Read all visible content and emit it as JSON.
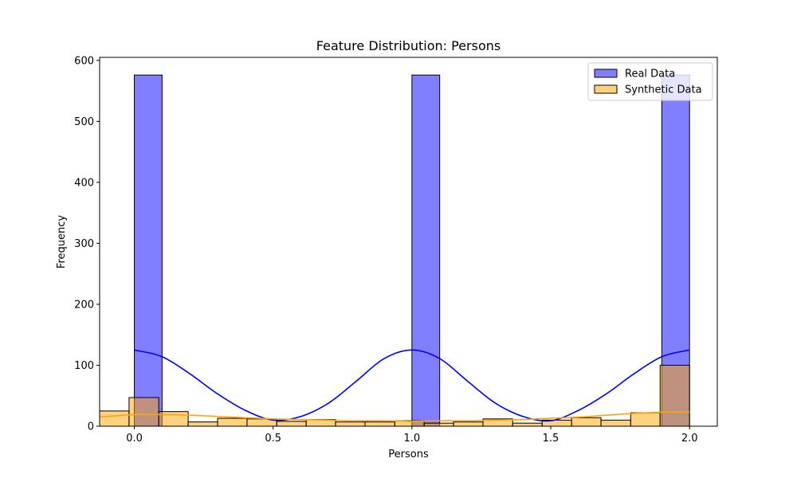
{
  "chart_data": {
    "type": "histogram",
    "title": "Feature Distribution: Persons",
    "xlabel": "Persons",
    "ylabel": "Frequency",
    "xlim": [
      -0.125,
      2.1
    ],
    "ylim": [
      0,
      605
    ],
    "xticks": [
      0.0,
      0.5,
      1.0,
      1.5,
      2.0
    ],
    "xtick_labels": [
      "0.0",
      "0.5",
      "1.0",
      "1.5",
      "2.0"
    ],
    "yticks": [
      0,
      100,
      200,
      300,
      400,
      500,
      600
    ],
    "ytick_labels": [
      "0",
      "100",
      "200",
      "300",
      "400",
      "500",
      "600"
    ],
    "grid": false,
    "legend_position": "top-right",
    "series": [
      {
        "name": "Real Data",
        "color": "#0000ff",
        "fill_opacity": 0.5,
        "bins": [
          {
            "x0": 0.0,
            "x1": 0.1,
            "count": 576
          },
          {
            "x0": 0.1,
            "x1": 0.2,
            "count": 0
          },
          {
            "x0": 0.2,
            "x1": 0.3,
            "count": 0
          },
          {
            "x0": 0.3,
            "x1": 0.4,
            "count": 0
          },
          {
            "x0": 0.4,
            "x1": 0.5,
            "count": 0
          },
          {
            "x0": 0.5,
            "x1": 0.6,
            "count": 0
          },
          {
            "x0": 0.6,
            "x1": 0.7,
            "count": 0
          },
          {
            "x0": 0.7,
            "x1": 0.8,
            "count": 0
          },
          {
            "x0": 0.8,
            "x1": 0.9,
            "count": 0
          },
          {
            "x0": 0.9,
            "x1": 1.0,
            "count": 0
          },
          {
            "x0": 1.0,
            "x1": 1.1,
            "count": 576
          },
          {
            "x0": 1.1,
            "x1": 1.2,
            "count": 0
          },
          {
            "x0": 1.2,
            "x1": 1.3,
            "count": 0
          },
          {
            "x0": 1.3,
            "x1": 1.4,
            "count": 0
          },
          {
            "x0": 1.4,
            "x1": 1.5,
            "count": 0
          },
          {
            "x0": 1.5,
            "x1": 1.6,
            "count": 0
          },
          {
            "x0": 1.6,
            "x1": 1.7,
            "count": 0
          },
          {
            "x0": 1.7,
            "x1": 1.8,
            "count": 0
          },
          {
            "x0": 1.8,
            "x1": 1.9,
            "count": 0
          },
          {
            "x0": 1.9,
            "x1": 2.0,
            "count": 576
          }
        ],
        "kde": {
          "x": [
            0.0,
            0.1,
            0.2,
            0.3,
            0.4,
            0.5,
            0.6,
            0.7,
            0.8,
            0.9,
            1.0,
            1.1,
            1.2,
            1.3,
            1.4,
            1.5,
            1.6,
            1.7,
            1.8,
            1.9,
            2.0
          ],
          "y": [
            125,
            114,
            86,
            53,
            26,
            10,
            16,
            38,
            74,
            111,
            125,
            111,
            74,
            38,
            16,
            9,
            26,
            53,
            86,
            114,
            125
          ]
        }
      },
      {
        "name": "Synthetic Data",
        "color": "#ffa500",
        "fill_opacity": 0.5,
        "bins": [
          {
            "x0": -0.125,
            "x1": -0.019,
            "count": 25
          },
          {
            "x0": -0.019,
            "x1": 0.088,
            "count": 47
          },
          {
            "x0": 0.088,
            "x1": 0.194,
            "count": 24
          },
          {
            "x0": 0.194,
            "x1": 0.3,
            "count": 7
          },
          {
            "x0": 0.3,
            "x1": 0.406,
            "count": 13
          },
          {
            "x0": 0.406,
            "x1": 0.513,
            "count": 12
          },
          {
            "x0": 0.513,
            "x1": 0.619,
            "count": 8
          },
          {
            "x0": 0.619,
            "x1": 0.725,
            "count": 11
          },
          {
            "x0": 0.725,
            "x1": 0.831,
            "count": 7
          },
          {
            "x0": 0.831,
            "x1": 0.938,
            "count": 7
          },
          {
            "x0": 0.938,
            "x1": 1.044,
            "count": 9
          },
          {
            "x0": 1.044,
            "x1": 1.15,
            "count": 5
          },
          {
            "x0": 1.15,
            "x1": 1.256,
            "count": 7
          },
          {
            "x0": 1.256,
            "x1": 1.363,
            "count": 12
          },
          {
            "x0": 1.363,
            "x1": 1.469,
            "count": 5
          },
          {
            "x0": 1.469,
            "x1": 1.575,
            "count": 10
          },
          {
            "x0": 1.575,
            "x1": 1.681,
            "count": 14
          },
          {
            "x0": 1.681,
            "x1": 1.788,
            "count": 10
          },
          {
            "x0": 1.788,
            "x1": 1.894,
            "count": 22
          },
          {
            "x0": 1.894,
            "x1": 2.0,
            "count": 100
          }
        ],
        "kde": {
          "x": [
            -0.125,
            0.0,
            0.1,
            0.2,
            0.3,
            0.4,
            0.5,
            0.6,
            0.7,
            0.8,
            0.9,
            1.0,
            1.1,
            1.2,
            1.3,
            1.4,
            1.5,
            1.6,
            1.7,
            1.8,
            1.9,
            2.0
          ],
          "y": [
            15,
            19,
            19,
            18,
            16,
            14,
            12,
            11,
            10,
            9,
            9,
            8,
            9,
            9,
            10,
            11,
            13,
            15,
            18,
            21,
            23,
            23
          ]
        }
      }
    ]
  }
}
